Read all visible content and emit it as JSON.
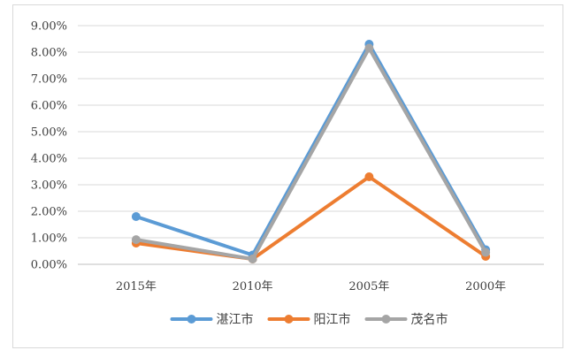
{
  "chart_data": {
    "type": "line",
    "categories": [
      "2015年",
      "2010年",
      "2005年",
      "2000年"
    ],
    "series": [
      {
        "name": "湛江市",
        "color": "#5B9BD5",
        "values": [
          0.018,
          0.0035,
          0.083,
          0.0055
        ]
      },
      {
        "name": "阳江市",
        "color": "#ED7D31",
        "values": [
          0.008,
          0.002,
          0.033,
          0.003
        ]
      },
      {
        "name": "茂名市",
        "color": "#A5A5A5",
        "values": [
          0.0093,
          0.002,
          0.0815,
          0.0045
        ]
      }
    ],
    "yticks": [
      "0.00%",
      "1.00%",
      "2.00%",
      "3.00%",
      "4.00%",
      "5.00%",
      "6.00%",
      "7.00%",
      "8.00%",
      "9.00%"
    ],
    "ylim": [
      0,
      0.09
    ],
    "grid": true,
    "legend_position": "bottom",
    "title": "",
    "xlabel": "",
    "ylabel": ""
  }
}
